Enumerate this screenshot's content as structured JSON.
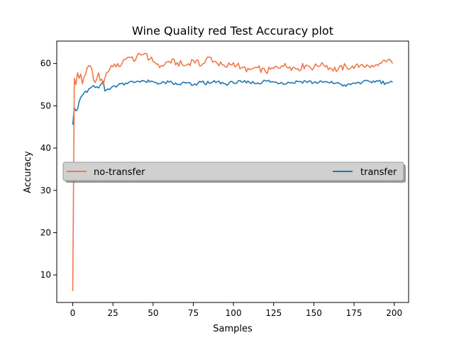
{
  "chart_data": {
    "type": "line",
    "title": "Wine Quality red Test Accuracy plot",
    "xlabel": "Samples",
    "ylabel": "Accuracy",
    "xlim": [
      -9.95,
      208.95
    ],
    "ylim": [
      3.5,
      65.3
    ],
    "xticks": [
      0,
      25,
      50,
      75,
      100,
      125,
      150,
      175,
      200
    ],
    "yticks": [
      10,
      20,
      30,
      40,
      50,
      60
    ],
    "grid": false,
    "legend": {
      "placement": "center",
      "layout": "horizontal",
      "entries": [
        "no-transfer",
        "transfer"
      ]
    },
    "series": [
      {
        "name": "no-transfer",
        "color": "#f1784a",
        "keypoints": [
          [
            0,
            6.2
          ],
          [
            1,
            56.5
          ],
          [
            2,
            55.0
          ],
          [
            3,
            57.8
          ],
          [
            4,
            56.5
          ],
          [
            5,
            57.5
          ],
          [
            6,
            55.2
          ],
          [
            7,
            56.8
          ],
          [
            8,
            57.5
          ],
          [
            9,
            59.0
          ],
          [
            10,
            59.5
          ],
          [
            11,
            59.4
          ],
          [
            12,
            58.5
          ],
          [
            13,
            56.0
          ],
          [
            14,
            55.5
          ],
          [
            15,
            56.5
          ],
          [
            16,
            57.8
          ],
          [
            17,
            56.0
          ],
          [
            18,
            56.3
          ],
          [
            19,
            55.0
          ],
          [
            20,
            56.5
          ],
          [
            22,
            58.0
          ],
          [
            25,
            59.2
          ],
          [
            28,
            60.0
          ],
          [
            30,
            59.5
          ],
          [
            32,
            61.0
          ],
          [
            35,
            61.5
          ],
          [
            38,
            60.5
          ],
          [
            40,
            61.8
          ],
          [
            43,
            62.0
          ],
          [
            45,
            62.4
          ],
          [
            48,
            61.0
          ],
          [
            50,
            60.5
          ],
          [
            55,
            59.5
          ],
          [
            60,
            60.5
          ],
          [
            65,
            60.2
          ],
          [
            70,
            59.5
          ],
          [
            75,
            60.8
          ],
          [
            80,
            59.5
          ],
          [
            85,
            61.5
          ],
          [
            90,
            60.0
          ],
          [
            95,
            59.2
          ],
          [
            100,
            60.2
          ],
          [
            105,
            59.0
          ],
          [
            110,
            58.5
          ],
          [
            115,
            59.0
          ],
          [
            120,
            58.0
          ],
          [
            125,
            58.8
          ],
          [
            130,
            59.5
          ],
          [
            135,
            59.2
          ],
          [
            140,
            58.8
          ],
          [
            145,
            59.6
          ],
          [
            150,
            59.0
          ],
          [
            155,
            60.2
          ],
          [
            160,
            59.0
          ],
          [
            165,
            58.5
          ],
          [
            170,
            59.4
          ],
          [
            175,
            58.8
          ],
          [
            180,
            59.8
          ],
          [
            185,
            59.0
          ],
          [
            190,
            59.5
          ],
          [
            195,
            60.4
          ],
          [
            198,
            60.6
          ],
          [
            199,
            60.0
          ]
        ]
      },
      {
        "name": "transfer",
        "color": "#1f77b4",
        "keypoints": [
          [
            0,
            45.5
          ],
          [
            1,
            49.5
          ],
          [
            2,
            48.8
          ],
          [
            3,
            49.2
          ],
          [
            4,
            51.0
          ],
          [
            5,
            52.0
          ],
          [
            6,
            52.5
          ],
          [
            7,
            53.0
          ],
          [
            8,
            53.5
          ],
          [
            9,
            53.2
          ],
          [
            10,
            54.0
          ],
          [
            11,
            54.2
          ],
          [
            12,
            54.5
          ],
          [
            13,
            54.8
          ],
          [
            14,
            54.3
          ],
          [
            15,
            54.5
          ],
          [
            16,
            54.2
          ],
          [
            17,
            54.8
          ],
          [
            18,
            55.3
          ],
          [
            19,
            55.8
          ],
          [
            20,
            53.5
          ],
          [
            22,
            54.0
          ],
          [
            25,
            54.6
          ],
          [
            28,
            54.8
          ],
          [
            30,
            55.2
          ],
          [
            33,
            55.4
          ],
          [
            35,
            55.6
          ],
          [
            38,
            55.5
          ],
          [
            40,
            55.8
          ],
          [
            43,
            56.0
          ],
          [
            45,
            55.8
          ],
          [
            48,
            55.6
          ],
          [
            50,
            55.7
          ],
          [
            55,
            55.3
          ],
          [
            60,
            55.6
          ],
          [
            65,
            55.0
          ],
          [
            70,
            55.4
          ],
          [
            75,
            54.9
          ],
          [
            80,
            55.6
          ],
          [
            85,
            55.3
          ],
          [
            90,
            55.7
          ],
          [
            95,
            55.2
          ],
          [
            100,
            55.4
          ],
          [
            105,
            55.6
          ],
          [
            110,
            55.5
          ],
          [
            115,
            55.4
          ],
          [
            120,
            55.9
          ],
          [
            125,
            55.6
          ],
          [
            130,
            55.5
          ],
          [
            135,
            55.4
          ],
          [
            140,
            55.7
          ],
          [
            145,
            55.8
          ],
          [
            150,
            55.5
          ],
          [
            155,
            55.7
          ],
          [
            160,
            55.4
          ],
          [
            165,
            55.5
          ],
          [
            170,
            54.6
          ],
          [
            175,
            55.4
          ],
          [
            180,
            55.5
          ],
          [
            185,
            55.7
          ],
          [
            190,
            55.8
          ],
          [
            195,
            55.4
          ],
          [
            199,
            55.6
          ]
        ]
      }
    ]
  }
}
